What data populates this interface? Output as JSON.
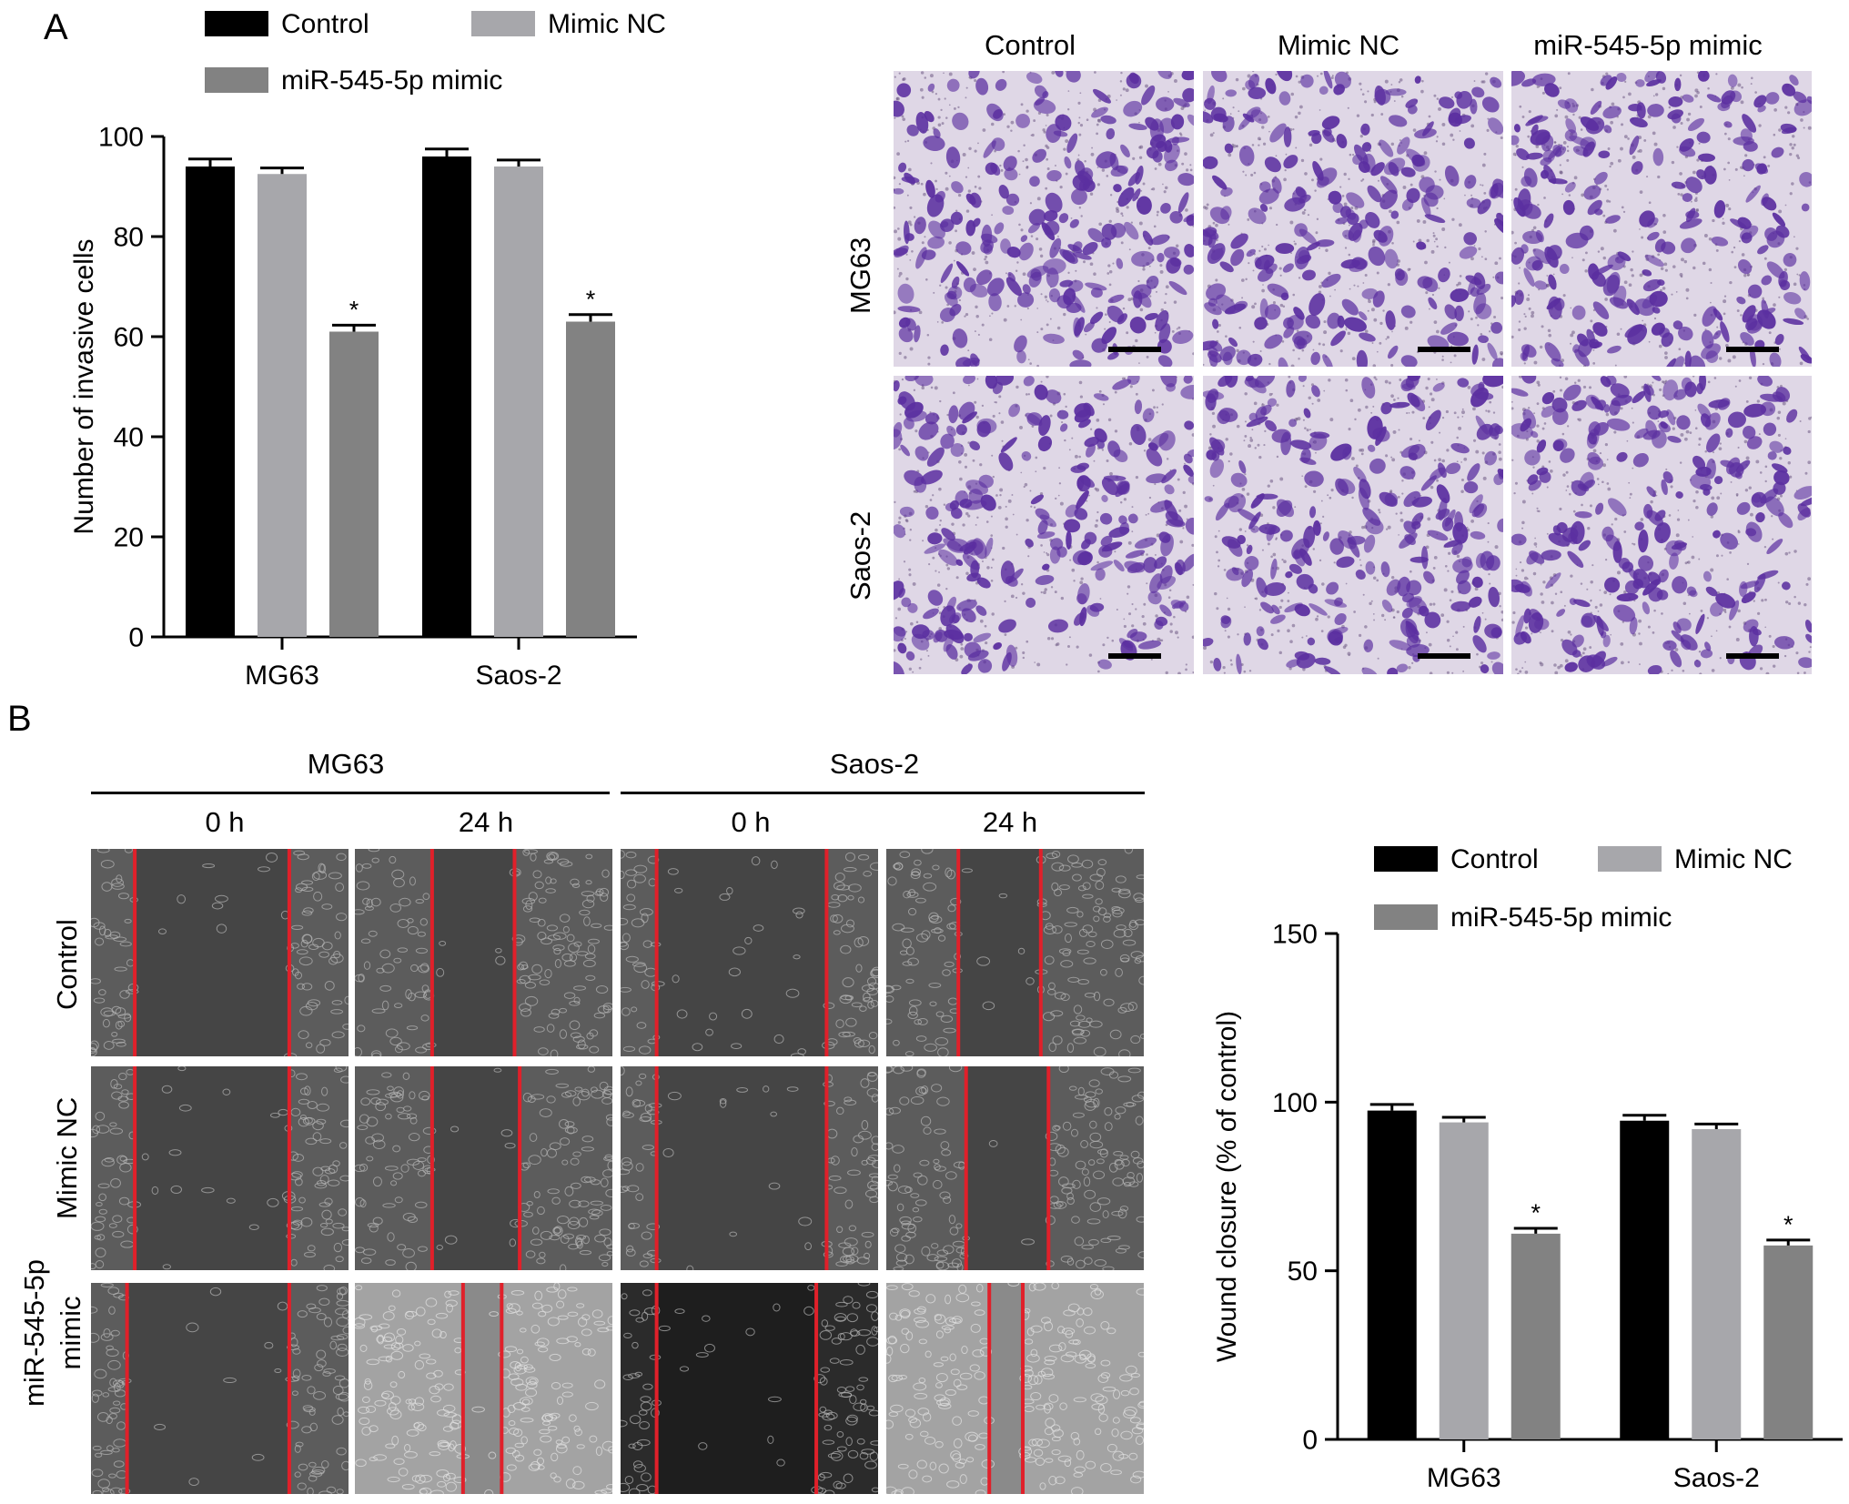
{
  "panels": {
    "a": "A",
    "b": "B"
  },
  "colors": {
    "control": "#000000",
    "mimic_nc": "#a7a7ab",
    "mimic": "#828282",
    "stain_bg": "#dfd7e6",
    "stain_cell": "#5b2fa0",
    "scratch_line": "#e0202a"
  },
  "invasion_images": {
    "columns": [
      "Control",
      "Mimic NC",
      "miR-545-5p mimic"
    ],
    "rows": [
      "MG63",
      "Saos-2"
    ]
  },
  "wound_images": {
    "groups": [
      {
        "name": "MG63",
        "times": [
          "0 h",
          "24 h"
        ]
      },
      {
        "name": "Saos-2",
        "times": [
          "0 h",
          "24 h"
        ]
      }
    ],
    "rows": [
      "Control",
      "Mimic NC",
      "miR-545-5p mimic"
    ]
  },
  "chart_data": [
    {
      "type": "bar",
      "panel": "A",
      "categories": [
        "MG63",
        "Saos-2"
      ],
      "series": [
        {
          "name": "Control",
          "values": [
            94,
            96
          ],
          "errors": [
            1.5,
            1.5
          ]
        },
        {
          "name": "Mimic NC",
          "values": [
            92.5,
            94
          ],
          "errors": [
            1.2,
            1.3
          ]
        },
        {
          "name": "miR-545-5p mimic",
          "values": [
            61,
            63
          ],
          "errors": [
            1.3,
            1.4
          ]
        }
      ],
      "significance": [
        "",
        "",
        "*"
      ],
      "xlabel": "",
      "ylabel": "Number of invasive cells",
      "ylim": [
        0,
        100
      ],
      "yticks": [
        0,
        20,
        40,
        60,
        80,
        100
      ],
      "legend": "top",
      "grid": false
    },
    {
      "type": "bar",
      "panel": "B",
      "categories": [
        "MG63",
        "Saos-2"
      ],
      "series": [
        {
          "name": "Control",
          "values": [
            97.5,
            94.5
          ],
          "errors": [
            1.8,
            1.6
          ]
        },
        {
          "name": "Mimic NC",
          "values": [
            94,
            92
          ],
          "errors": [
            1.5,
            1.5
          ]
        },
        {
          "name": "miR-545-5p mimic",
          "values": [
            61,
            57.5
          ],
          "errors": [
            1.6,
            1.6
          ]
        }
      ],
      "significance": [
        "",
        "",
        "*"
      ],
      "xlabel": "",
      "ylabel": "Wound closure (% of control)",
      "ylim": [
        0,
        150
      ],
      "yticks": [
        0,
        50,
        100,
        150
      ],
      "legend": "top",
      "grid": false
    }
  ]
}
